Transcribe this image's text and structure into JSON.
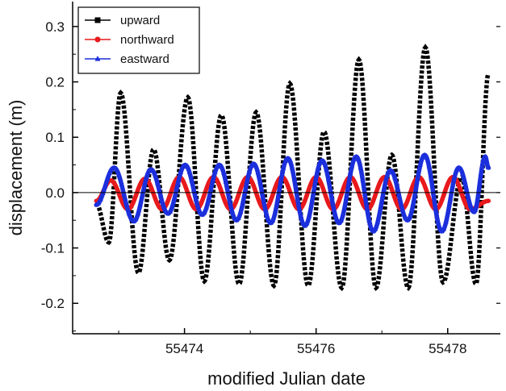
{
  "chart_data": {
    "type": "line",
    "title": "",
    "xlabel": "modified Julian date",
    "ylabel": "displacement (m)",
    "xlim": [
      55472.3,
      55478.8
    ],
    "ylim": [
      -0.255,
      0.345
    ],
    "x_ticks": [
      55474,
      55476,
      55478
    ],
    "x_tick_labels": [
      "55474",
      "55476",
      "55478"
    ],
    "y_ticks": [
      -0.2,
      -0.1,
      0.0,
      0.1,
      0.2,
      0.3
    ],
    "y_tick_labels": [
      "-0.2",
      "-0.1",
      "0.0",
      "0.1",
      "0.2",
      "0.3"
    ],
    "zero_line": true,
    "grid": false,
    "legend": {
      "position": "top-left"
    },
    "series": [
      {
        "name": "upward",
        "color": "#000000",
        "marker": "square",
        "points": [
          [
            55472.66,
            -0.02
          ],
          [
            55472.85,
            -0.09
          ],
          [
            55473.03,
            0.18
          ],
          [
            55473.3,
            -0.145
          ],
          [
            55473.53,
            0.078
          ],
          [
            55473.77,
            -0.122
          ],
          [
            55474.05,
            0.172
          ],
          [
            55474.3,
            -0.16
          ],
          [
            55474.56,
            0.14
          ],
          [
            55474.83,
            -0.165
          ],
          [
            55475.09,
            0.145
          ],
          [
            55475.36,
            -0.168
          ],
          [
            55475.6,
            0.197
          ],
          [
            55475.88,
            -0.168
          ],
          [
            55476.12,
            0.11
          ],
          [
            55476.39,
            -0.172
          ],
          [
            55476.65,
            0.24
          ],
          [
            55476.91,
            -0.172
          ],
          [
            55477.15,
            0.068
          ],
          [
            55477.4,
            -0.172
          ],
          [
            55477.66,
            0.262
          ],
          [
            55477.93,
            -0.162
          ],
          [
            55478.21,
            0.028
          ],
          [
            55478.43,
            -0.165
          ],
          [
            55478.62,
            0.215
          ]
        ]
      },
      {
        "name": "northward",
        "color": "#e8191c",
        "marker": "circle",
        "points": [
          [
            55472.66,
            -0.015
          ],
          [
            55472.88,
            0.022
          ],
          [
            55473.14,
            -0.03
          ],
          [
            55473.4,
            0.025
          ],
          [
            55473.66,
            -0.03
          ],
          [
            55473.92,
            0.028
          ],
          [
            55474.18,
            -0.03
          ],
          [
            55474.44,
            0.028
          ],
          [
            55474.7,
            -0.03
          ],
          [
            55474.96,
            0.028
          ],
          [
            55475.22,
            -0.03
          ],
          [
            55475.48,
            0.028
          ],
          [
            55475.74,
            -0.03
          ],
          [
            55476.0,
            0.028
          ],
          [
            55476.26,
            -0.03
          ],
          [
            55476.52,
            0.028
          ],
          [
            55476.78,
            -0.03
          ],
          [
            55477.04,
            0.028
          ],
          [
            55477.3,
            -0.03
          ],
          [
            55477.56,
            0.028
          ],
          [
            55477.82,
            -0.03
          ],
          [
            55478.08,
            0.028
          ],
          [
            55478.34,
            -0.03
          ],
          [
            55478.62,
            -0.015
          ]
        ]
      },
      {
        "name": "eastward",
        "color": "#1b2fdc",
        "marker": "triangle",
        "points": [
          [
            55472.66,
            -0.022
          ],
          [
            55472.93,
            0.045
          ],
          [
            55473.23,
            -0.052
          ],
          [
            55473.49,
            0.042
          ],
          [
            55473.75,
            -0.038
          ],
          [
            55474.01,
            0.05
          ],
          [
            55474.27,
            -0.04
          ],
          [
            55474.53,
            0.05
          ],
          [
            55474.79,
            -0.05
          ],
          [
            55475.05,
            0.052
          ],
          [
            55475.31,
            -0.055
          ],
          [
            55475.57,
            0.062
          ],
          [
            55475.83,
            -0.06
          ],
          [
            55476.09,
            0.058
          ],
          [
            55476.35,
            -0.055
          ],
          [
            55476.61,
            0.065
          ],
          [
            55476.87,
            -0.07
          ],
          [
            55477.13,
            0.04
          ],
          [
            55477.39,
            -0.05
          ],
          [
            55477.65,
            0.068
          ],
          [
            55477.91,
            -0.07
          ],
          [
            55478.17,
            0.045
          ],
          [
            55478.4,
            -0.035
          ],
          [
            55478.57,
            0.065
          ],
          [
            55478.62,
            0.045
          ]
        ]
      }
    ]
  }
}
